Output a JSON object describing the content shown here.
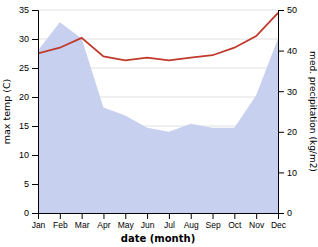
{
  "chart_data": {
    "type": "line",
    "categories": [
      "Jan",
      "Feb",
      "Mar",
      "Apr",
      "May",
      "Jun",
      "Jul",
      "Aug",
      "Sep",
      "Oct",
      "Nov",
      "Dec"
    ],
    "series": [
      {
        "type": "area",
        "color": "#c8d0f0",
        "axis": "y2",
        "values": [
          40,
          47,
          43,
          26,
          24,
          21,
          20,
          22,
          21,
          21,
          29,
          43
        ]
      },
      {
        "type": "line",
        "color": "#c0392b",
        "values": [
          27.5,
          28.5,
          30.2,
          27.0,
          26.3,
          26.8,
          26.3,
          26.8,
          27.2,
          28.5,
          30.5,
          34.5
        ]
      }
    ],
    "xlabel": "date (month)",
    "ylabel": "max temp (C)",
    "y2label": "med. precipitation (kg/m2)",
    "ylim": [
      0,
      35
    ],
    "yticks": [
      0,
      5,
      10,
      15,
      20,
      25,
      30,
      35
    ],
    "y2lim": [
      0,
      50
    ],
    "y2ticks": [
      0,
      10,
      20,
      30,
      40,
      50
    ],
    "grid": true
  }
}
